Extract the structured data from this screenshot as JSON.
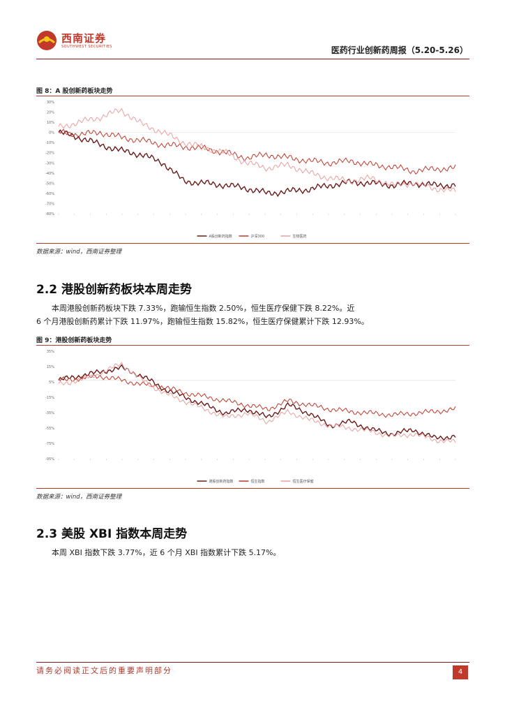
{
  "header": {
    "logo_cn": "西南证券",
    "logo_en": "SOUTHWEST SECURITIES",
    "report_title": "医药行业创新药周报（5.20-5.26）"
  },
  "figures": [
    {
      "title": "图 8：A 股创新药板块走势",
      "source": "数据来源：wind，西南证券整理"
    },
    {
      "title": "图 9：港股创新药板块走势",
      "source": "数据来源：wind，西南证券整理"
    }
  ],
  "sections": [
    {
      "heading": "2.2 港股创新药板块本周走势",
      "paragraph_line1": "本周港股创新药板块下跌 7.33%，跑输恒生指数 2.50%，恒生医疗保健下跌 8.22%。近",
      "paragraph_line2": "6 个月港股创新药累计下跌 11.97%，跑输恒生指数 15.82%，恒生医疗保健累计下跌 12.93%。"
    },
    {
      "heading": "2.3 美股 XBI 指数本周走势",
      "paragraph_line1": "本周 XBI 指数下跌 3.77%，近 6 个月 XBI 指数累计下跌 5.17%。"
    }
  ],
  "chart_data": [
    {
      "type": "line",
      "ylim": [
        -80,
        30
      ],
      "yticks": [
        "30%",
        "20%",
        "10%",
        "0%",
        "-10%",
        "-20%",
        "-30%",
        "-40%",
        "-50%",
        "-60%",
        "-70%",
        "-80%"
      ],
      "colors": [
        "#6b1a1a",
        "#c0392b",
        "#e8a0a0"
      ],
      "series": [
        {
          "name": "A股创新药指数",
          "values": [
            0,
            -5,
            -12,
            -18,
            -22,
            -30,
            -48,
            -50,
            -52,
            -55,
            -60,
            -58,
            -56,
            -52,
            -49,
            -50,
            -52,
            -50,
            -52,
            -52
          ]
        },
        {
          "name": "沪深300",
          "values": [
            0,
            -2,
            0,
            -5,
            -8,
            -12,
            -14,
            -16,
            -20,
            -25,
            -22,
            -25,
            -28,
            -30,
            -28,
            -32,
            -34,
            -38,
            -36,
            -35
          ]
        },
        {
          "name": "生物医药",
          "values": [
            5,
            10,
            15,
            22,
            8,
            0,
            -10,
            -15,
            -20,
            -30,
            -35,
            -32,
            -40,
            -45,
            -48,
            -45,
            -52,
            -50,
            -55,
            -58
          ]
        }
      ]
    },
    {
      "type": "line",
      "ylim": [
        -95,
        35
      ],
      "yticks": [
        "35%",
        "15%",
        "5%",
        "-15%",
        "-35%",
        "-55%",
        "-75%",
        "-95%"
      ],
      "colors": [
        "#6b1a1a",
        "#c0392b",
        "#e8a0a0"
      ],
      "series": [
        {
          "name": "港股创新药指数",
          "values": [
            0,
            5,
            10,
            15,
            5,
            -10,
            -20,
            -30,
            -40,
            -35,
            -45,
            -30,
            -40,
            -55,
            -50,
            -60,
            -65,
            -60,
            -70,
            -68
          ]
        },
        {
          "name": "恒生指数",
          "values": [
            0,
            2,
            5,
            0,
            -5,
            -8,
            -15,
            -20,
            -25,
            -30,
            -35,
            -25,
            -30,
            -35,
            -38,
            -40,
            -42,
            -40,
            -38,
            -35
          ]
        },
        {
          "name": "恒生医疗保健",
          "values": [
            -5,
            0,
            8,
            20,
            0,
            -15,
            -25,
            -35,
            -45,
            -40,
            -50,
            -38,
            -48,
            -55,
            -58,
            -62,
            -68,
            -65,
            -72,
            -75
          ]
        }
      ]
    }
  ],
  "footer": {
    "disclaimer": "请务必阅读正文后的重要声明部分",
    "page": "4"
  }
}
